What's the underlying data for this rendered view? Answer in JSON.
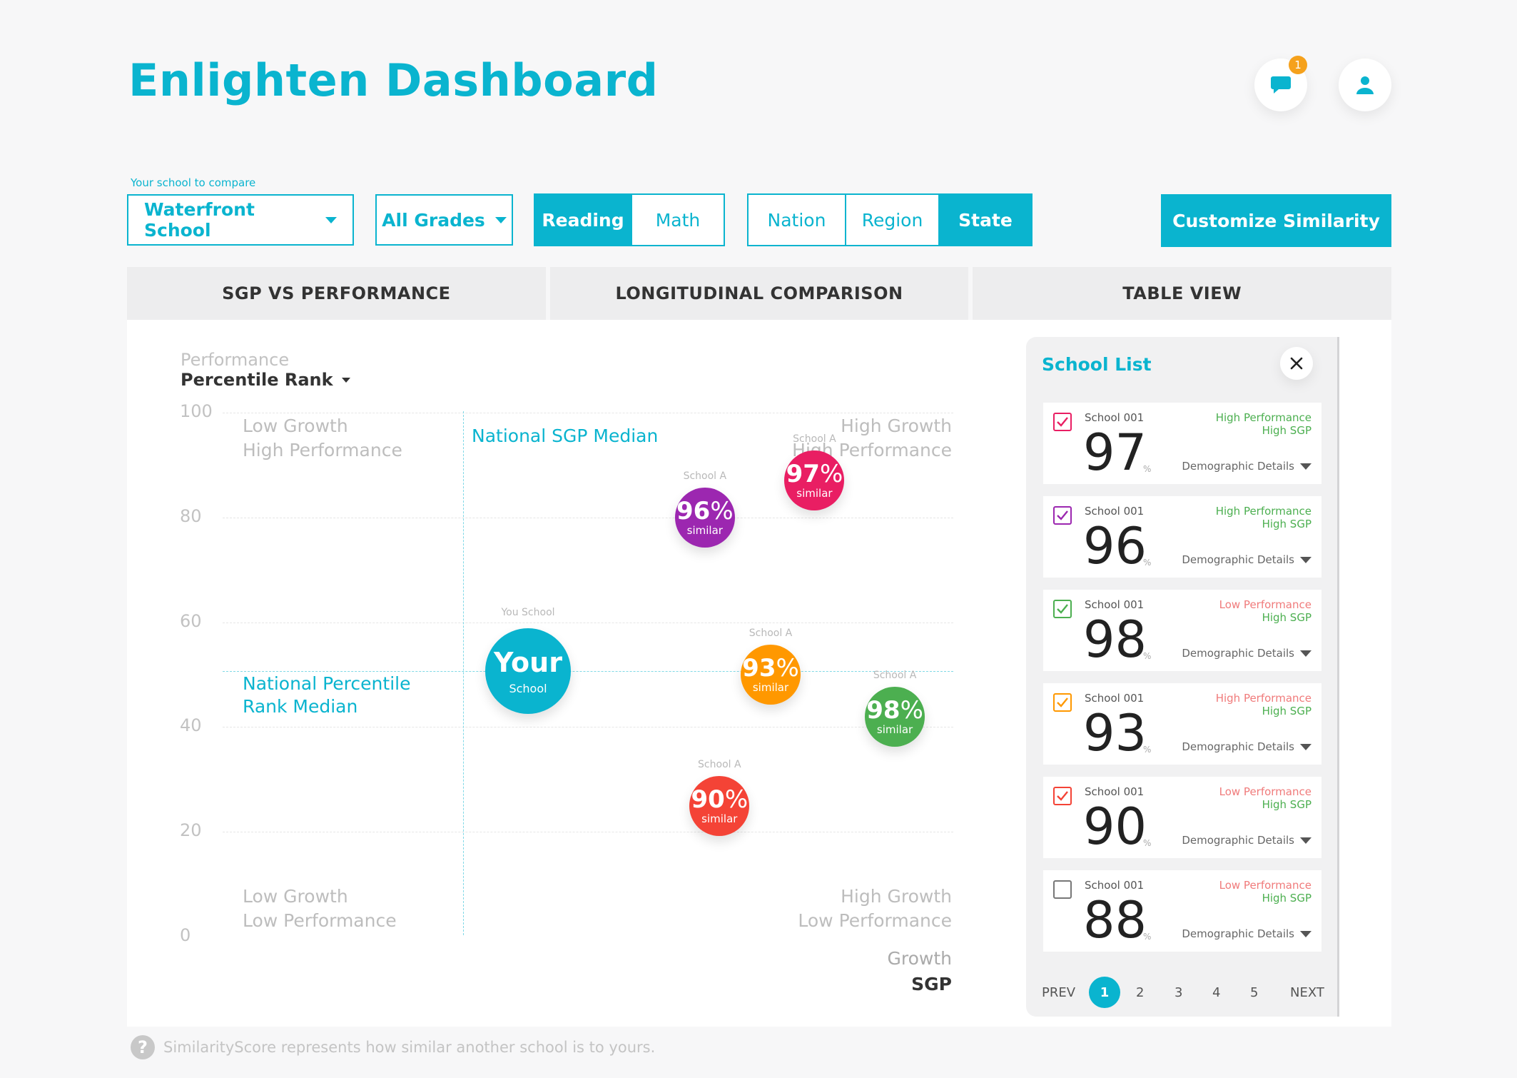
{
  "header": {
    "title": "Enlighten Dashboard",
    "notification_count": "1"
  },
  "filters": {
    "school_label": "Your school to compare",
    "school_value": "Waterfront School",
    "grades_value": "All Grades",
    "subjects": [
      "Reading",
      "Math"
    ],
    "subject_active": "Reading",
    "scopes": [
      "Nation",
      "Region",
      "State"
    ],
    "scope_active": "State",
    "customize_label": "Customize Similarity"
  },
  "tabs": [
    "SGP VS PERFORMANCE",
    "LONGITUDINAL COMPARISON",
    "TABLE VIEW"
  ],
  "chart": {
    "y_title_top": "Performance",
    "y_title": "Percentile Rank",
    "x_title_top": "Growth",
    "x_title": "SGP",
    "quadrants": {
      "top_left": [
        "Low Growth",
        "High Performance"
      ],
      "top_right": [
        "High Growth",
        "High Performance"
      ],
      "bottom_left": [
        "Low Growth",
        "Low Performance"
      ],
      "bottom_right": [
        "High Growth",
        "Low Performance"
      ]
    },
    "sgp_median_label": "National SGP Median",
    "rank_median_label": [
      "National Percentile",
      "Rank Median"
    ],
    "your_school": {
      "caption": "You School",
      "big": "Your",
      "small": "School"
    },
    "similar_word": "similar",
    "percent_sign": "%"
  },
  "chart_data": {
    "type": "scatter",
    "title": "SGP vs Performance",
    "xlabel": "SGP",
    "ylabel": "Percentile Rank",
    "y_ticks": [
      100,
      80,
      60,
      40,
      20,
      0
    ],
    "ylim": [
      0,
      100
    ],
    "xlim": [
      0,
      100
    ],
    "x_median": 50,
    "y_median": 50,
    "your_school": {
      "x": 56,
      "y": 50
    },
    "points": [
      {
        "label": "School A",
        "similarity": 97,
        "x": 81,
        "y": 87,
        "color": "#e91e63"
      },
      {
        "label": "School A",
        "similarity": 96,
        "x": 66,
        "y": 80,
        "color": "#9c27b0"
      },
      {
        "label": "School A",
        "similarity": 93,
        "x": 75,
        "y": 50,
        "color": "#ff9800"
      },
      {
        "label": "School A",
        "similarity": 98,
        "x": 92,
        "y": 42,
        "color": "#4caf50"
      },
      {
        "label": "School A",
        "similarity": 90,
        "x": 68,
        "y": 25,
        "color": "#f44336"
      }
    ]
  },
  "school_list": {
    "title": "School List",
    "demo_label": "Demographic Details",
    "percent_sign": "%",
    "items": [
      {
        "name": "School 001",
        "score": "97",
        "perf": "High Performance",
        "sgp": "High SGP",
        "checked": true,
        "color": "#e91e63",
        "perf_color": "#4caf50"
      },
      {
        "name": "School 001",
        "score": "96",
        "perf": "High Performance",
        "sgp": "High SGP",
        "checked": true,
        "color": "#9c27b0",
        "perf_color": "#4caf50"
      },
      {
        "name": "School 001",
        "score": "98",
        "perf": "Low Performance",
        "sgp": "High SGP",
        "checked": true,
        "color": "#4caf50",
        "perf_color": "#f07b7b"
      },
      {
        "name": "School 001",
        "score": "93",
        "perf": "High Performance",
        "sgp": "High SGP",
        "checked": true,
        "color": "#ff9800",
        "perf_color": "#f07b7b"
      },
      {
        "name": "School 001",
        "score": "90",
        "perf": "Low Performance",
        "sgp": "High SGP",
        "checked": true,
        "color": "#f44336",
        "perf_color": "#f07b7b"
      },
      {
        "name": "School 001",
        "score": "88",
        "perf": "Low Performance",
        "sgp": "High SGP",
        "checked": false,
        "color": "#777777",
        "perf_color": "#f07b7b"
      }
    ],
    "pager": {
      "prev": "PREV",
      "next": "NEXT",
      "pages": [
        "1",
        "2",
        "3",
        "4",
        "5"
      ],
      "active": "1"
    }
  },
  "footer": {
    "note": "SimilarityScore represents how similar another school is to yours."
  },
  "colors": {
    "accent": "#0ab4cf",
    "badge": "#f5a11c"
  }
}
